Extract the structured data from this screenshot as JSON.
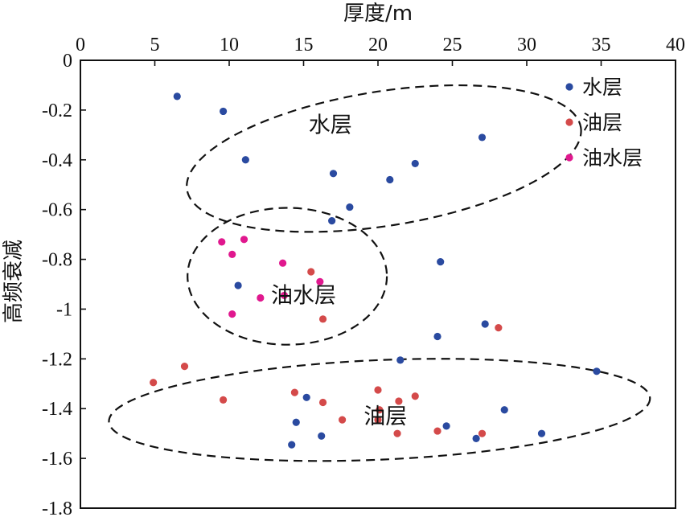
{
  "chart_data": {
    "type": "scatter",
    "xlabel": "厚度/m",
    "ylabel": "高频衰减",
    "xlim": [
      0,
      40
    ],
    "ylim": [
      -1.8,
      0
    ],
    "x_ticks": [
      0,
      5,
      10,
      15,
      20,
      25,
      30,
      35,
      40
    ],
    "y_ticks": [
      0,
      -0.2,
      -0.4,
      -0.6,
      -0.8,
      -1,
      -1.2,
      -1.4,
      -1.6,
      -1.8
    ],
    "x_tick_labels": [
      "0",
      "5",
      "10",
      "15",
      "20",
      "25",
      "30",
      "35",
      "40"
    ],
    "y_tick_labels": [
      "0",
      "-0.2",
      "-0.4",
      "-0.6",
      "-0.8",
      "-1",
      "-1.2",
      "-1.4",
      "-1.6",
      "-1.8"
    ],
    "x_axis_position": "top",
    "grid": false,
    "legend_position": "top-right",
    "series": [
      {
        "name": "水层",
        "color": "#2a4aa0",
        "points": [
          {
            "x": 6.5,
            "y": -0.145
          },
          {
            "x": 9.6,
            "y": -0.205
          },
          {
            "x": 11.1,
            "y": -0.4
          },
          {
            "x": 17.0,
            "y": -0.455
          },
          {
            "x": 20.8,
            "y": -0.48
          },
          {
            "x": 22.5,
            "y": -0.415
          },
          {
            "x": 27.0,
            "y": -0.31
          },
          {
            "x": 18.1,
            "y": -0.59
          },
          {
            "x": 16.9,
            "y": -0.645
          },
          {
            "x": 24.2,
            "y": -0.81
          },
          {
            "x": 10.6,
            "y": -0.905
          },
          {
            "x": 24.0,
            "y": -1.11
          },
          {
            "x": 27.2,
            "y": -1.06
          },
          {
            "x": 21.5,
            "y": -1.205
          },
          {
            "x": 34.7,
            "y": -1.25
          },
          {
            "x": 15.2,
            "y": -1.355
          },
          {
            "x": 14.5,
            "y": -1.455
          },
          {
            "x": 28.5,
            "y": -1.405
          },
          {
            "x": 24.6,
            "y": -1.47
          },
          {
            "x": 16.2,
            "y": -1.51
          },
          {
            "x": 14.2,
            "y": -1.545
          },
          {
            "x": 26.6,
            "y": -1.52
          },
          {
            "x": 31.0,
            "y": -1.5
          }
        ]
      },
      {
        "name": "油层",
        "color": "#d44a4a",
        "points": [
          {
            "x": 4.9,
            "y": -1.295
          },
          {
            "x": 7.0,
            "y": -1.23
          },
          {
            "x": 9.6,
            "y": -1.365
          },
          {
            "x": 14.4,
            "y": -1.335
          },
          {
            "x": 16.3,
            "y": -1.375
          },
          {
            "x": 17.6,
            "y": -1.445
          },
          {
            "x": 20.0,
            "y": -1.325
          },
          {
            "x": 20.1,
            "y": -1.405
          },
          {
            "x": 20.0,
            "y": -1.445
          },
          {
            "x": 21.4,
            "y": -1.37
          },
          {
            "x": 22.5,
            "y": -1.35
          },
          {
            "x": 21.3,
            "y": -1.5
          },
          {
            "x": 24.0,
            "y": -1.49
          },
          {
            "x": 27.0,
            "y": -1.5
          },
          {
            "x": 28.1,
            "y": -1.075
          },
          {
            "x": 15.5,
            "y": -0.85
          },
          {
            "x": 16.3,
            "y": -1.04
          }
        ]
      },
      {
        "name": "油水层",
        "color": "#e0188e",
        "points": [
          {
            "x": 9.5,
            "y": -0.73
          },
          {
            "x": 11.0,
            "y": -0.72
          },
          {
            "x": 10.2,
            "y": -0.78
          },
          {
            "x": 13.6,
            "y": -0.815
          },
          {
            "x": 16.1,
            "y": -0.89
          },
          {
            "x": 12.1,
            "y": -0.955
          },
          {
            "x": 13.7,
            "y": -0.945
          },
          {
            "x": 10.2,
            "y": -1.02
          }
        ]
      }
    ],
    "regions": [
      {
        "label": "水层",
        "label_x": 16.8,
        "label_y": -0.29,
        "cx": 20.4,
        "cy": -0.395,
        "rx": 13.4,
        "ry": 0.27,
        "angle_deg": 9
      },
      {
        "label": "油水层",
        "label_x": 15.0,
        "label_y": -0.975,
        "cx": 13.9,
        "cy": -0.868,
        "rx": 6.7,
        "ry": 0.275,
        "angle_deg": 0
      },
      {
        "label": "油层",
        "label_x": 20.5,
        "label_y": -1.46,
        "cx": 20.1,
        "cy": -1.405,
        "rx": 18.2,
        "ry": 0.2,
        "angle_deg": 2.5
      },
      {
        "label": "",
        "label_x": 0,
        "label_y": 0,
        "cx": 0,
        "cy": 0,
        "rx": 0,
        "ry": 0,
        "angle_deg": 0
      }
    ]
  }
}
